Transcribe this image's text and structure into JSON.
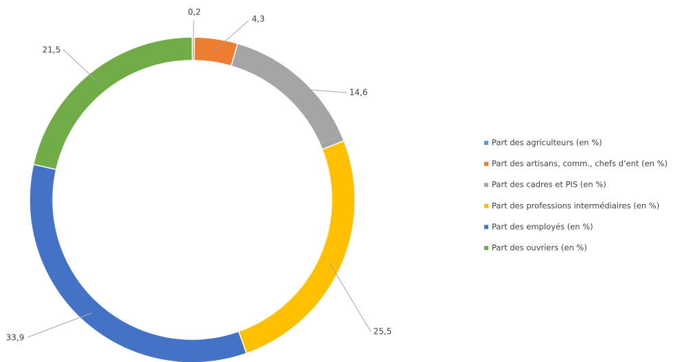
{
  "chart_data": {
    "type": "donut",
    "categories": [
      "Part des agriculteurs (en %)",
      "Part des artisans, comm., chefs d’ent (en %)",
      "Part des cadres et PIS (en %)",
      "Part des professions intermédiaires (en %)",
      "Part des employés (en %)",
      "Part des ouvriers (en %)"
    ],
    "values": [
      0.2,
      4.3,
      14.6,
      25.5,
      33.9,
      21.5
    ],
    "value_labels": [
      "0,2",
      "4,3",
      "14,6",
      "25,5",
      "33,9",
      "21,5"
    ],
    "colors": [
      "#5b9bd5",
      "#ed7d31",
      "#a5a5a5",
      "#ffc000",
      "#4472c4",
      "#70ad47"
    ],
    "legend": "right"
  }
}
